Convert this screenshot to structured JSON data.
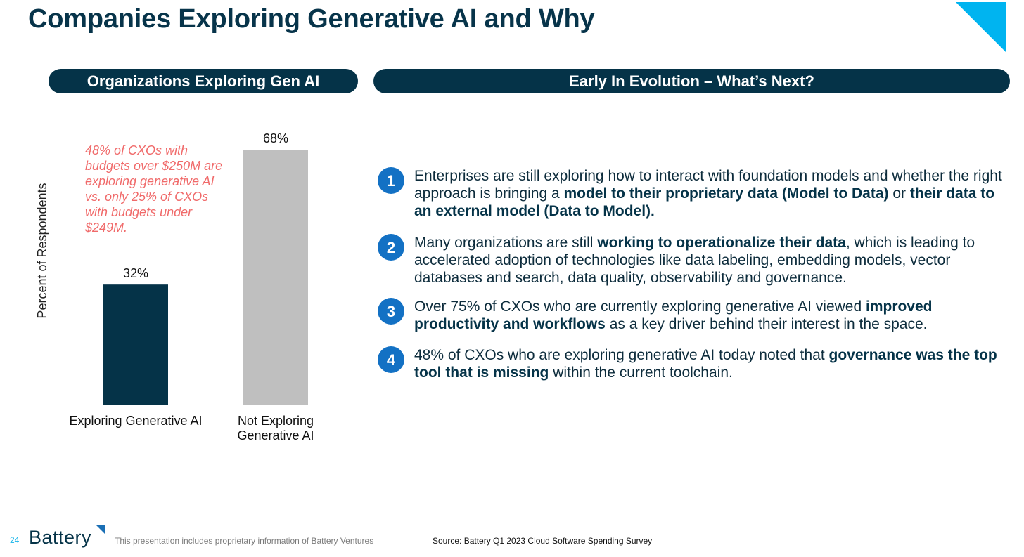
{
  "slide": {
    "title": "Companies Exploring Generative AI and Why",
    "page_number": "24",
    "logo_text": "Battery",
    "disclaimer": "This presentation includes proprietary information of Battery Ventures",
    "source": "Source: Battery Q1 2023 Cloud Software Spending Survey"
  },
  "left_panel": {
    "header": "Organizations Exploring Gen AI",
    "annotation": "48% of CXOs with budgets over $250M are exploring generative AI vs. only 25% of CXOs with budgets under $249M."
  },
  "right_panel": {
    "header": "Early In Evolution – What’s Next?",
    "points": [
      {
        "number": "1",
        "t1": "Enterprises are still exploring how to interact with foundation models and whether the right approach is bringing a ",
        "b1": "model to their proprietary data (Model to Data)",
        "t2": " or ",
        "b2": "their data to an external model (Data to Model).",
        "t3": ""
      },
      {
        "number": "2",
        "t1": "Many organizations are still ",
        "b1": "working to operationalize their data",
        "t2": ", which is leading to accelerated adoption of technologies like data labeling, embedding models, vector databases and search, data quality, observability and governance.",
        "b2": "",
        "t3": ""
      },
      {
        "number": "3",
        "t1": "Over 75% of CXOs who are currently exploring generative AI viewed ",
        "b1": "improved productivity and workflows",
        "t2": " as a key driver behind their interest in the space.",
        "b2": "",
        "t3": ""
      },
      {
        "number": "4",
        "t1": "48% of CXOs who are exploring generative AI today noted that ",
        "b1": "governance was the top tool that is missing",
        "t2": " within the current toolchain.",
        "b2": "",
        "t3": ""
      }
    ]
  },
  "colors": {
    "navy": "#053348",
    "gray_bar": "#bfbfbf",
    "accent_cyan": "#00b4f0",
    "annotation_red": "#f06a6a",
    "bullet_blue": "#1371c4"
  },
  "chart_data": {
    "type": "bar",
    "title": "Organizations Exploring Gen AI",
    "xlabel": "",
    "ylabel": "Percent of Respondents",
    "categories": [
      [
        "Exploring Generative AI"
      ],
      [
        "Not Exploring",
        "Generative AI"
      ]
    ],
    "values": [
      32,
      68
    ],
    "data_labels": [
      "32%",
      "68%"
    ],
    "ylim": [
      0,
      70
    ],
    "grid": false
  }
}
